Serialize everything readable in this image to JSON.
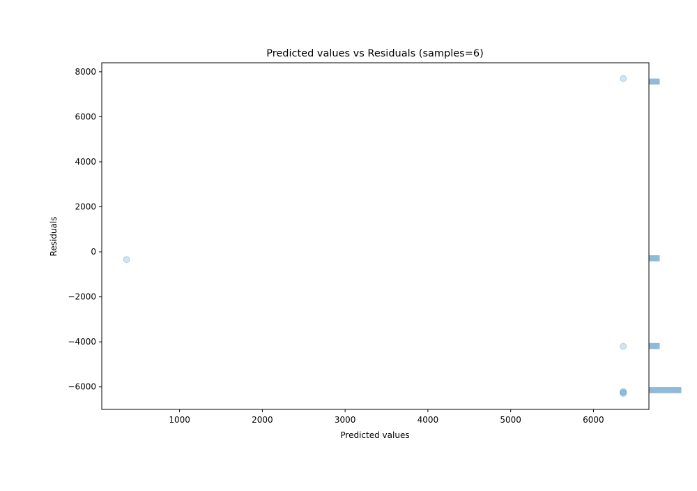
{
  "chart_data": {
    "type": "scatter",
    "title": "Predicted values vs Residuals (samples=6)",
    "xlabel": "Predicted values",
    "ylabel": "Residuals",
    "xlim": [
      60,
      6670
    ],
    "ylim": [
      -7000,
      8400
    ],
    "xticks": [
      1000,
      2000,
      3000,
      4000,
      5000,
      6000
    ],
    "yticks": [
      -6000,
      -4000,
      -2000,
      0,
      2000,
      4000,
      6000,
      8000
    ],
    "xtick_labels": [
      "1000",
      "2000",
      "3000",
      "4000",
      "5000",
      "6000"
    ],
    "ytick_labels": [
      "−6000",
      "−4000",
      "−2000",
      "0",
      "2000",
      "4000",
      "6000",
      "8000"
    ],
    "grid": false,
    "point_color": "#1f77b4",
    "point_alpha": 0.2,
    "points": [
      {
        "x": 360,
        "y": -340
      },
      {
        "x": 6360,
        "y": 7700
      },
      {
        "x": 6360,
        "y": -4200
      },
      {
        "x": 6360,
        "y": -6200
      },
      {
        "x": 6360,
        "y": -6250
      },
      {
        "x": 6360,
        "y": -6290
      }
    ],
    "marginal_histogram": {
      "orientation": "horizontal",
      "side": "right",
      "color": "#1f77b4",
      "alpha": 0.5,
      "bins": [
        {
          "y0": -6280,
          "y1": -6010,
          "count": 3
        },
        {
          "y0": -4320,
          "y1": -4050,
          "count": 1
        },
        {
          "y0": -420,
          "y1": -150,
          "count": 1
        },
        {
          "y0": 7430,
          "y1": 7700,
          "count": 1
        }
      ]
    }
  }
}
